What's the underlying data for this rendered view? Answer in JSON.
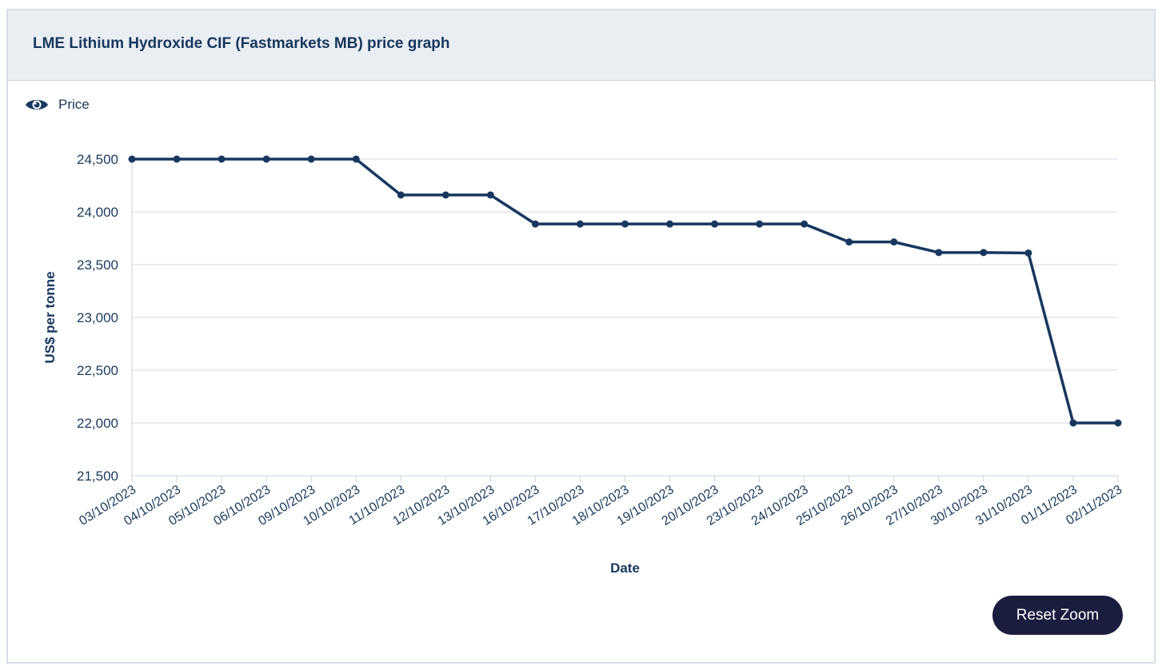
{
  "header": {
    "title": "LME Lithium Hydroxide CIF (Fastmarkets MB) price graph"
  },
  "legend": {
    "label": "Price",
    "icon": "eye-icon"
  },
  "reset_zoom_label": "Reset Zoom",
  "colors": {
    "line": "#17375e",
    "grid": "#d3dbe3",
    "button": "#1b1d3f",
    "header_bg": "#e9eef3"
  },
  "chart_data": {
    "type": "line",
    "xlabel": "Date",
    "ylabel": "US$ per tonne",
    "ylim": [
      21500,
      24500
    ],
    "y_ticks": [
      "24,500",
      "24,000",
      "23,500",
      "23,000",
      "22,500",
      "22,000",
      "21,500"
    ],
    "grid": true,
    "legend_position": "top-left",
    "categories": [
      "03/10/2023",
      "04/10/2023",
      "05/10/2023",
      "06/10/2023",
      "09/10/2023",
      "10/10/2023",
      "11/10/2023",
      "12/10/2023",
      "13/10/2023",
      "16/10/2023",
      "17/10/2023",
      "18/10/2023",
      "19/10/2023",
      "20/10/2023",
      "23/10/2023",
      "24/10/2023",
      "25/10/2023",
      "26/10/2023",
      "27/10/2023",
      "30/10/2023",
      "31/10/2023",
      "01/11/2023",
      "02/11/2023"
    ],
    "series": [
      {
        "name": "Price",
        "values": [
          24500,
          24500,
          24500,
          24500,
          24500,
          24500,
          24160,
          24160,
          24160,
          23885,
          23885,
          23885,
          23885,
          23885,
          23885,
          23885,
          23715,
          23715,
          23615,
          23615,
          23610,
          22000,
          22000
        ]
      }
    ]
  }
}
